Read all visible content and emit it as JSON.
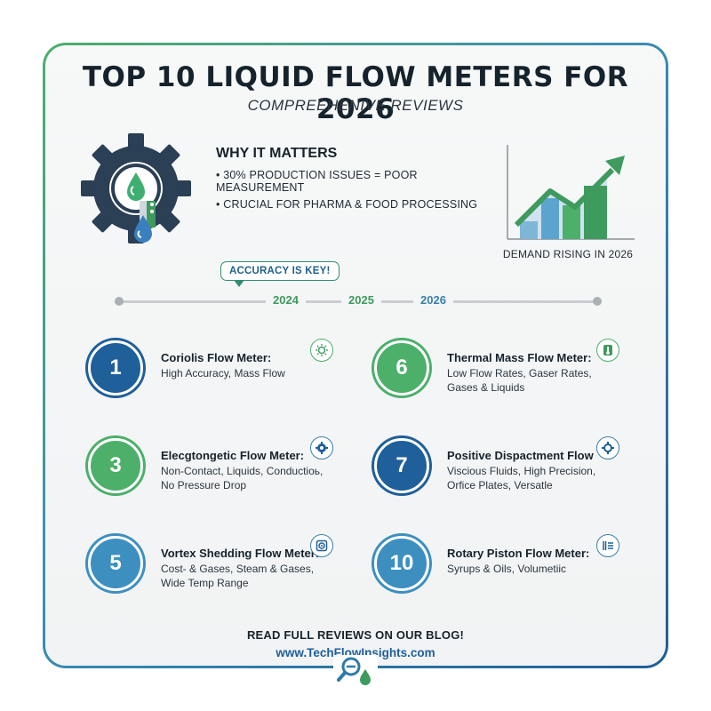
{
  "header": {
    "title": "TOP 10 LIQUID FLOW METERS FOR 2026",
    "subtitle": "COMPREEHENIVE REVIEWS"
  },
  "why": {
    "heading": "WHY IT MATTERS",
    "bullets": [
      "• 30% PRODUCTION ISSUES = POOR MEASUREMENT",
      "• CRUCIAL FOR PHARMA & FOOD PROCESSING"
    ]
  },
  "trend": {
    "label": "DEMAND RISING IN 2026",
    "icon": "trend-up-chart"
  },
  "callout": {
    "text": "ACCURACY IS KEY!"
  },
  "timeline": {
    "years": [
      "2024",
      "2025",
      "2026"
    ],
    "colors": [
      "#3f9a5e",
      "#3f9a5e",
      "#3a7fa8"
    ]
  },
  "items": [
    {
      "number": "1",
      "title": "Coriolis Flow Meter:",
      "desc": "High Accuracy, Mass Flow",
      "color": "#1f5f9a",
      "icon": "sun-gear-icon"
    },
    {
      "number": "6",
      "title": "Thermal Mass Flow Meter:",
      "desc": "Low Flow Rates, Gaser Rates, Gases & Liquids",
      "color": "#4caf6a",
      "icon": "thermal-icon"
    },
    {
      "number": "3",
      "title": "Elecgtongetic Flow Meter:",
      "desc": "Non-Contact, Liquids, Conductioь, No Pressure Drop",
      "color": "#4caf6a",
      "icon": "gear-icon"
    },
    {
      "number": "7",
      "title": "Positive Dispactment Flow",
      "desc": "Viscious Fluids, High Precision, Orfice Plates, Versatle",
      "color": "#1f5f9a",
      "icon": "gear-icon"
    },
    {
      "number": "5",
      "title": "Vortex Shedding Flow Meter:",
      "desc": "Cost- & Gases, Steam & Gases, Wide Temp Range",
      "color": "#3d8fc0",
      "icon": "vortex-icon"
    },
    {
      "number": "10",
      "title": "Rotary Piston Flow Meter:",
      "desc": "Syrups & Oils, Volumetiic",
      "color": "#3d8fc0",
      "icon": "list-icon"
    }
  ],
  "footer": {
    "cta": "READ FULL REVIEWS ON OUR BLOG!",
    "url": "www.TechFlowInsights.com"
  }
}
